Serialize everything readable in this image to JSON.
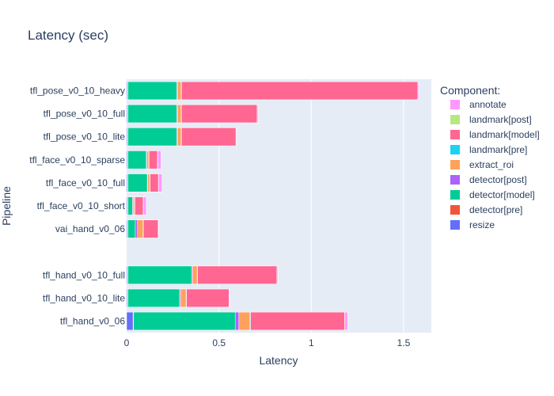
{
  "chart_data": {
    "type": "bar",
    "orientation": "horizontal",
    "stacked": true,
    "title": "Latency (sec)",
    "xlabel": "Latency",
    "ylabel": "Pipeline",
    "xlim": [
      0,
      1.65
    ],
    "xticks": [
      0,
      0.5,
      1,
      1.5
    ],
    "xtick_labels": [
      "0",
      "0.5",
      "1",
      "1.5"
    ],
    "legend_title": "Component:",
    "legend_position": "right",
    "categories": [
      "tfl_pose_v0_10_heavy",
      "tfl_pose_v0_10_full",
      "tfl_pose_v0_10_lite",
      "tfl_face_v0_10_sparse",
      "tfl_face_v0_10_full",
      "tfl_face_v0_10_short",
      "vai_hand_v0_06",
      "",
      "tfl_hand_v0_10_full",
      "tfl_hand_v0_10_lite",
      "tfl_hand_v0_06"
    ],
    "series": [
      {
        "name": "resize",
        "color": "#636efa",
        "values": [
          0.005,
          0.005,
          0.005,
          0.005,
          0.005,
          0.005,
          0.005,
          0,
          0.005,
          0.005,
          0.035
        ]
      },
      {
        "name": "detector[pre]",
        "color": "#ef553b",
        "values": [
          0.002,
          0.002,
          0.002,
          0.002,
          0.002,
          0.002,
          0.002,
          0,
          0.002,
          0.002,
          0.003
        ]
      },
      {
        "name": "detector[model]",
        "color": "#00cc96",
        "values": [
          0.265,
          0.265,
          0.265,
          0.1,
          0.105,
          0.025,
          0.04,
          0,
          0.345,
          0.28,
          0.55
        ]
      },
      {
        "name": "detector[post]",
        "color": "#ab63fa",
        "values": [
          0.003,
          0.003,
          0.003,
          0.003,
          0.003,
          0.003,
          0.012,
          0,
          0.005,
          0.005,
          0.02
        ]
      },
      {
        "name": "extract_roi",
        "color": "#ffa15a",
        "values": [
          0.02,
          0.02,
          0.02,
          0.01,
          0.01,
          0.008,
          0.03,
          0,
          0.025,
          0.03,
          0.06
        ]
      },
      {
        "name": "landmark[pre]",
        "color": "#19d3f3",
        "values": [
          0.002,
          0.002,
          0.002,
          0.002,
          0.002,
          0.002,
          0.002,
          0,
          0.002,
          0.002,
          0.003
        ]
      },
      {
        "name": "landmark[model]",
        "color": "#ff6692",
        "values": [
          1.28,
          0.41,
          0.295,
          0.045,
          0.045,
          0.045,
          0.08,
          0,
          0.43,
          0.23,
          0.51
        ]
      },
      {
        "name": "landmark[post]",
        "color": "#b6e880",
        "values": [
          0.001,
          0.001,
          0.001,
          0.001,
          0.001,
          0.001,
          0.001,
          0,
          0.001,
          0.001,
          0.001
        ]
      },
      {
        "name": "annotate",
        "color": "#ff97ff",
        "values": [
          0.005,
          0.005,
          0.002,
          0.018,
          0.018,
          0.015,
          0.002,
          0,
          0.005,
          0.004,
          0.015
        ]
      }
    ],
    "legend_order": [
      "annotate",
      "landmark[post]",
      "landmark[model]",
      "landmark[pre]",
      "extract_roi",
      "detector[post]",
      "detector[model]",
      "detector[pre]",
      "resize"
    ]
  }
}
